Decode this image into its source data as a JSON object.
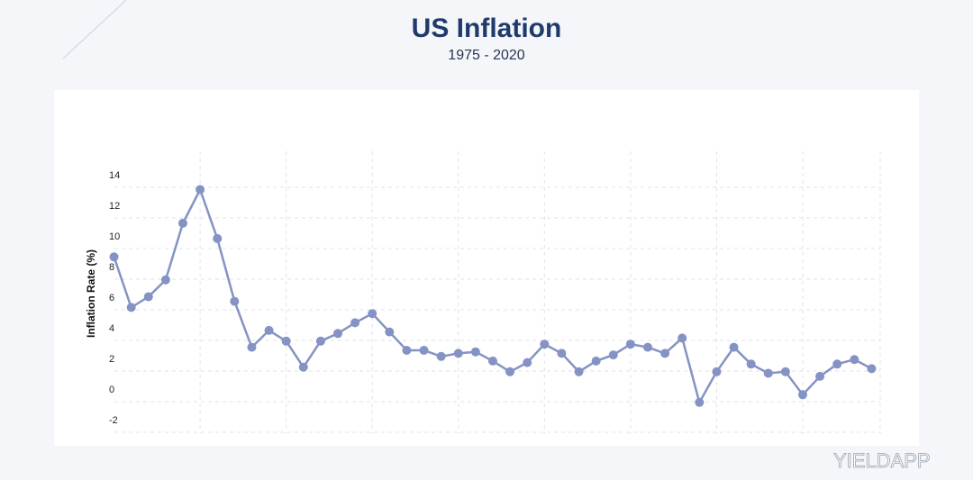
{
  "chart_data": {
    "type": "line",
    "title": "US Inflation",
    "subtitle": "1975 - 2020",
    "y_label": "Inflation Rate (%)",
    "watermark": "YIELDAPP",
    "categories": [
      null,
      null,
      null,
      null,
      null,
      null,
      null,
      null,
      null,
      null,
      null,
      null,
      null,
      null,
      null,
      null,
      null,
      null,
      null,
      null,
      null,
      null,
      null,
      null,
      null,
      null,
      null,
      null,
      null,
      null,
      null,
      null,
      null,
      null,
      null,
      null,
      null,
      null,
      null,
      null,
      null,
      null,
      null,
      null,
      null
    ],
    "series": [
      {
        "name": "Inflation",
        "color": "#8593c4",
        "values": [
          9.1,
          5.8,
          6.5,
          7.6,
          11.3,
          13.5,
          10.3,
          6.2,
          3.2,
          4.3,
          3.6,
          1.9,
          3.6,
          4.1,
          4.8,
          5.4,
          4.2,
          3.0,
          3.0,
          2.6,
          2.8,
          2.9,
          2.3,
          1.6,
          2.2,
          3.4,
          2.8,
          1.6,
          2.3,
          2.7,
          3.4,
          3.2,
          2.8,
          3.8,
          -0.4,
          1.6,
          3.2,
          2.1,
          1.5,
          1.6,
          0.1,
          1.3,
          2.1,
          2.4,
          1.8
        ]
      }
    ],
    "ylim": [
      -2,
      16
    ],
    "yticks": [
      -2,
      0,
      2,
      4,
      6,
      8,
      10,
      12,
      14
    ],
    "grid": true
  }
}
